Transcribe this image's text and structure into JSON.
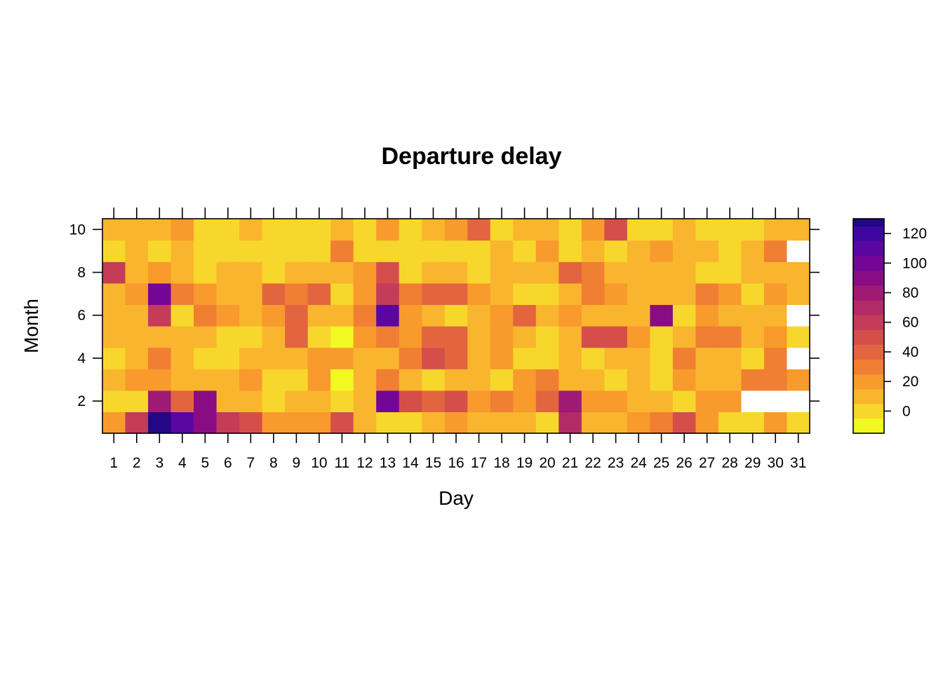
{
  "chart_data": {
    "type": "heatmap",
    "title": "Departure delay",
    "xlabel": "Day",
    "ylabel": "Month",
    "x_categories": [
      1,
      2,
      3,
      4,
      5,
      6,
      7,
      8,
      9,
      10,
      11,
      12,
      13,
      14,
      15,
      16,
      17,
      18,
      19,
      20,
      21,
      22,
      23,
      24,
      25,
      26,
      27,
      28,
      29,
      30,
      31
    ],
    "y_range": [
      1,
      10
    ],
    "y_ticks": [
      2,
      4,
      6,
      8,
      10
    ],
    "legend": {
      "position": "right",
      "range": [
        -15,
        130
      ],
      "ticks": [
        0,
        20,
        40,
        60,
        80,
        100,
        120
      ],
      "breaks": [
        -15,
        -5,
        5,
        15,
        25,
        35,
        45,
        55,
        65,
        75,
        85,
        95,
        105,
        115,
        125,
        130
      ],
      "colors": [
        "#f0f921",
        "#f7d72b",
        "#f9b52e",
        "#f89a2c",
        "#f07e33",
        "#e3653f",
        "#d54f4a",
        "#c43c58",
        "#b22b67",
        "#9e1a75",
        "#8a0c85",
        "#730697",
        "#5a06a0",
        "#3f07a2",
        "#230784",
        "#0d0887"
      ]
    },
    "missing_color": "#ffffff",
    "values": [
      [
        20,
        55,
        125,
        110,
        90,
        60,
        45,
        20,
        20,
        20,
        50,
        10,
        0,
        0,
        10,
        20,
        10,
        10,
        10,
        0,
        65,
        10,
        10,
        20,
        30,
        45,
        20,
        0,
        0,
        20,
        0
      ],
      [
        0,
        0,
        80,
        40,
        85,
        10,
        10,
        0,
        10,
        10,
        0,
        10,
        100,
        50,
        40,
        45,
        20,
        30,
        20,
        40,
        75,
        20,
        20,
        10,
        10,
        0,
        20,
        20,
        null,
        null,
        null
      ],
      [
        10,
        20,
        20,
        10,
        10,
        10,
        20,
        0,
        0,
        20,
        -10,
        10,
        30,
        10,
        0,
        10,
        10,
        0,
        20,
        30,
        10,
        10,
        0,
        10,
        0,
        20,
        10,
        10,
        30,
        30,
        20
      ],
      [
        0,
        10,
        30,
        10,
        0,
        0,
        10,
        10,
        10,
        20,
        20,
        10,
        10,
        30,
        45,
        40,
        10,
        20,
        0,
        0,
        10,
        0,
        10,
        10,
        0,
        30,
        10,
        10,
        0,
        30,
        null
      ],
      [
        10,
        10,
        10,
        10,
        10,
        0,
        0,
        10,
        40,
        0,
        -10,
        20,
        30,
        20,
        40,
        40,
        10,
        20,
        10,
        0,
        10,
        45,
        45,
        20,
        0,
        10,
        30,
        30,
        10,
        20,
        0
      ],
      [
        10,
        10,
        55,
        0,
        30,
        20,
        10,
        20,
        40,
        10,
        10,
        30,
        105,
        20,
        10,
        0,
        10,
        20,
        40,
        10,
        20,
        10,
        10,
        10,
        85,
        0,
        20,
        10,
        10,
        10,
        null
      ],
      [
        10,
        20,
        100,
        30,
        20,
        10,
        10,
        40,
        30,
        40,
        0,
        20,
        60,
        30,
        40,
        40,
        20,
        10,
        0,
        0,
        10,
        30,
        20,
        10,
        10,
        10,
        30,
        20,
        0,
        20,
        10
      ],
      [
        55,
        10,
        20,
        10,
        0,
        10,
        10,
        0,
        10,
        10,
        10,
        20,
        45,
        0,
        10,
        10,
        0,
        10,
        10,
        10,
        40,
        30,
        10,
        10,
        10,
        10,
        0,
        0,
        10,
        10,
        10
      ],
      [
        0,
        10,
        0,
        10,
        0,
        0,
        0,
        0,
        0,
        0,
        30,
        0,
        0,
        0,
        0,
        0,
        0,
        10,
        0,
        20,
        0,
        10,
        0,
        10,
        20,
        10,
        10,
        0,
        10,
        30,
        null
      ],
      [
        10,
        10,
        10,
        20,
        0,
        0,
        10,
        0,
        0,
        0,
        10,
        0,
        20,
        0,
        10,
        20,
        40,
        0,
        10,
        10,
        0,
        20,
        45,
        0,
        0,
        10,
        0,
        0,
        0,
        10,
        10
      ]
    ]
  }
}
